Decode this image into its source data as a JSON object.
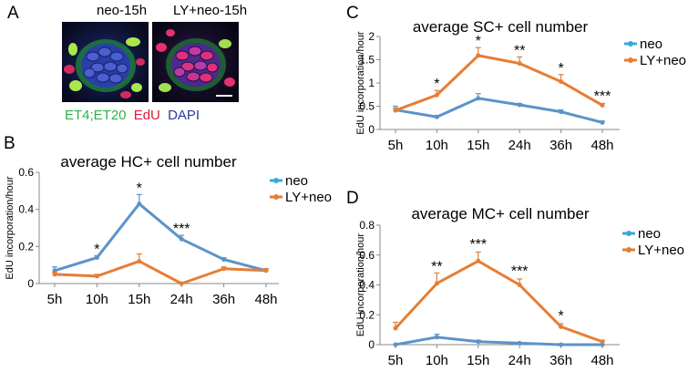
{
  "panels": {
    "A": {
      "label": "A",
      "images": [
        {
          "title": "neo-15h"
        },
        {
          "title": "LY+neo-15h"
        }
      ],
      "stain_legend": [
        {
          "text": "ET4;ET20",
          "color": "#2db34a"
        },
        {
          "text": "EdU",
          "color": "#e0173c"
        },
        {
          "text": "DAPI",
          "color": "#2b3a9e"
        }
      ]
    },
    "B": {
      "label": "B"
    },
    "C": {
      "label": "C"
    },
    "D": {
      "label": "D"
    }
  },
  "colors": {
    "neo": "#5b93c9",
    "ly_neo": "#e67e34",
    "neo_legend": "#3aa7db"
  },
  "chart_data": [
    {
      "id": "B",
      "type": "line",
      "title": "average HC+ cell number",
      "ylabel": "EdU incorporation/hour",
      "xlabel": "",
      "categories": [
        "5h",
        "10h",
        "15h",
        "24h",
        "36h",
        "48h"
      ],
      "ylim": [
        0,
        0.6
      ],
      "yticks": [
        "0",
        "0.2",
        "0.4",
        "0.6"
      ],
      "grid": false,
      "legend_position": "right",
      "series": [
        {
          "name": "neo",
          "values": [
            0.07,
            0.14,
            0.43,
            0.24,
            0.13,
            0.07
          ],
          "errors": [
            0.02,
            0.01,
            0.05,
            0.02,
            0.01,
            0.01
          ]
        },
        {
          "name": "LY+neo",
          "values": [
            0.05,
            0.04,
            0.12,
            0.0,
            0.08,
            0.07
          ],
          "errors": [
            0.01,
            0.01,
            0.04,
            0.0,
            0.01,
            0.01
          ]
        }
      ],
      "annotations": [
        {
          "category": "10h",
          "text": "*",
          "y": 0.15
        },
        {
          "category": "15h",
          "text": "*",
          "y": 0.48
        },
        {
          "category": "24h",
          "text": "***",
          "y": 0.26
        }
      ]
    },
    {
      "id": "C",
      "type": "line",
      "title": "average SC+ cell number",
      "ylabel": "EdU incorporation/hour",
      "xlabel": "",
      "categories": [
        "5h",
        "10h",
        "15h",
        "24h",
        "36h",
        "48h"
      ],
      "ylim": [
        0,
        2
      ],
      "yticks": [
        "0",
        "0.5",
        "1",
        "1.5",
        "2"
      ],
      "grid": false,
      "legend_position": "top-right",
      "series": [
        {
          "name": "neo",
          "values": [
            0.42,
            0.27,
            0.67,
            0.53,
            0.38,
            0.15
          ],
          "errors": [
            0.08,
            0.03,
            0.1,
            0.03,
            0.04,
            0.03
          ]
        },
        {
          "name": "LY+neo",
          "values": [
            0.41,
            0.74,
            1.59,
            1.42,
            1.03,
            0.52
          ],
          "errors": [
            0.05,
            0.1,
            0.17,
            0.14,
            0.15,
            0.04
          ]
        }
      ],
      "annotations": [
        {
          "category": "10h",
          "text": "*",
          "y": 0.84
        },
        {
          "category": "15h",
          "text": "*",
          "y": 1.76
        },
        {
          "category": "24h",
          "text": "**",
          "y": 1.56
        },
        {
          "category": "36h",
          "text": "*",
          "y": 1.18
        },
        {
          "category": "48h",
          "text": "***",
          "y": 0.58
        }
      ]
    },
    {
      "id": "D",
      "type": "line",
      "title": "average MC+ cell number",
      "ylabel": "EdU incorporation/hour",
      "xlabel": "",
      "categories": [
        "5h",
        "10h",
        "15h",
        "24h",
        "36h",
        "48h"
      ],
      "ylim": [
        0,
        0.8
      ],
      "yticks": [
        "0",
        "0.2",
        "0.4",
        "0.6",
        "0.8"
      ],
      "grid": false,
      "legend_position": "top-right",
      "series": [
        {
          "name": "neo",
          "values": [
            0.0,
            0.05,
            0.02,
            0.01,
            0.0,
            0.0
          ],
          "errors": [
            0.0,
            0.02,
            0.01,
            0.0,
            0.0,
            0.0
          ]
        },
        {
          "name": "LY+neo",
          "values": [
            0.11,
            0.41,
            0.56,
            0.4,
            0.12,
            0.02
          ],
          "errors": [
            0.04,
            0.07,
            0.06,
            0.04,
            0.02,
            0.01
          ]
        }
      ],
      "annotations": [
        {
          "category": "10h",
          "text": "**",
          "y": 0.48
        },
        {
          "category": "15h",
          "text": "***",
          "y": 0.63
        },
        {
          "category": "24h",
          "text": "***",
          "y": 0.45
        },
        {
          "category": "36h",
          "text": "*",
          "y": 0.15
        }
      ]
    }
  ]
}
